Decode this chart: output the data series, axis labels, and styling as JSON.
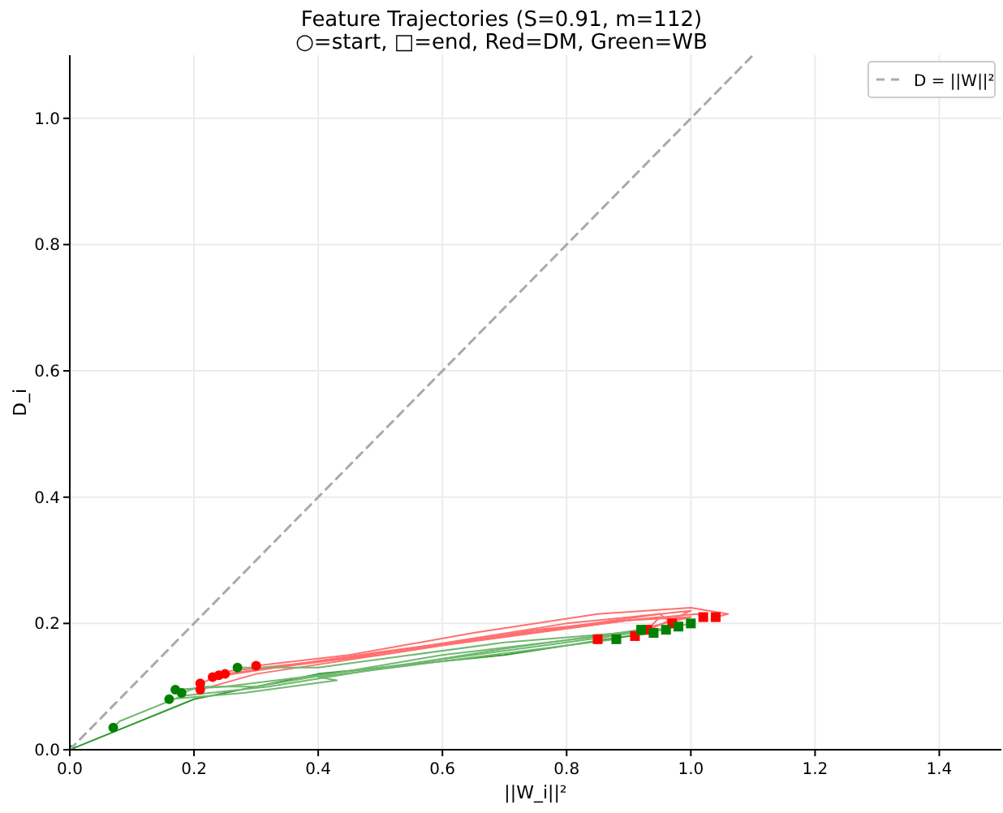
{
  "chart_data": {
    "type": "line",
    "title": "Feature Trajectories (S=0.91, m=112)",
    "subtitle": "○=start, □=end, Red=DM, Green=WB",
    "xlabel": "||W_i||²",
    "ylabel": "D_i",
    "xlim": [
      0,
      1.5
    ],
    "xticks": [
      {
        "value": 0,
        "label": "0.0"
      },
      0.2,
      0.4,
      0.6,
      0.8,
      {
        "value": 1,
        "label": "1.0"
      },
      1.2,
      1.4
    ],
    "ylim": [
      0,
      1.1
    ],
    "yticks": [
      {
        "value": 0,
        "label": "0.0"
      },
      0.2,
      0.4,
      0.6,
      0.8,
      {
        "value": 1,
        "label": "1.0"
      }
    ],
    "grid": true,
    "legend": "top right",
    "series": [
      {
        "color": "#ff7070",
        "x": [
          0.3,
          0.45,
          0.65,
          0.85,
          1.0,
          1.06,
          1.04
        ],
        "values": [
          0.133,
          0.15,
          0.185,
          0.215,
          0.225,
          0.215,
          0.21
        ]
      },
      {
        "color": "#ff7070",
        "x": [
          0.21,
          0.26,
          0.5,
          0.75,
          0.95,
          0.93
        ],
        "values": [
          0.105,
          0.125,
          0.15,
          0.19,
          0.21,
          0.19
        ]
      },
      {
        "color": "#ff7070",
        "x": [
          0.23,
          0.4,
          0.7,
          0.9,
          1.0,
          0.85
        ],
        "values": [
          0.115,
          0.14,
          0.18,
          0.205,
          0.21,
          0.175
        ]
      },
      {
        "color": "#ff7070",
        "x": [
          0.25,
          0.45,
          0.8,
          1.0,
          0.91
        ],
        "values": [
          0.12,
          0.145,
          0.2,
          0.22,
          0.18
        ]
      },
      {
        "color": "#ff7070",
        "x": [
          0.24,
          0.5,
          0.77,
          0.95,
          0.97
        ],
        "values": [
          0.118,
          0.155,
          0.19,
          0.215,
          0.2
        ]
      },
      {
        "color": "#ff7070",
        "x": [
          0.21,
          0.3,
          0.6,
          0.9,
          1.01,
          1.02
        ],
        "values": [
          0.095,
          0.12,
          0.165,
          0.205,
          0.215,
          0.21
        ]
      },
      {
        "color": "#2e9a2e",
        "x": [
          0,
          0.2,
          0.4,
          0.7,
          0.9,
          0.94
        ],
        "values": [
          0,
          0.08,
          0.12,
          0.15,
          0.18,
          0.185
        ]
      },
      {
        "color": "#70b870",
        "x": [
          0.16,
          0.28,
          0.43,
          0.4,
          0.6,
          0.88
        ],
        "values": [
          0.08,
          0.09,
          0.11,
          0.115,
          0.14,
          0.175
        ]
      },
      {
        "color": "#70b870",
        "x": [
          0.18,
          0.21,
          0.3,
          0.6,
          0.9,
          0.96
        ],
        "values": [
          0.09,
          0.1,
          0.1,
          0.15,
          0.185,
          0.19
        ]
      },
      {
        "color": "#70b870",
        "x": [
          0.27,
          0.4,
          0.7,
          0.95,
          1.0
        ],
        "values": [
          0.13,
          0.13,
          0.17,
          0.19,
          0.2
        ]
      },
      {
        "color": "#70b870",
        "x": [
          0.07,
          0.08,
          0.18,
          0.32,
          0.7,
          0.92
        ],
        "values": [
          0.035,
          0.045,
          0.085,
          0.1,
          0.16,
          0.19
        ]
      },
      {
        "color": "#70b870",
        "x": [
          0.17,
          0.25,
          0.5,
          0.8,
          0.98
        ],
        "values": [
          0.095,
          0.1,
          0.13,
          0.17,
          0.195
        ]
      },
      {
        "type": "scatter",
        "marker": "circle",
        "color": "#ff0000",
        "x": [
          0.3,
          0.21,
          0.23,
          0.25,
          0.24,
          0.21
        ],
        "values": [
          0.133,
          0.105,
          0.115,
          0.12,
          0.118,
          0.095
        ]
      },
      {
        "type": "scatter",
        "marker": "square",
        "color": "#ff0000",
        "x": [
          1.04,
          0.93,
          0.85,
          0.91,
          0.97,
          1.02
        ],
        "values": [
          0.21,
          0.19,
          0.175,
          0.18,
          0.2,
          0.21
        ]
      },
      {
        "type": "scatter",
        "marker": "circle",
        "color": "#008000",
        "x": [
          0,
          0.16,
          0.18,
          0.27,
          0.07,
          0.17
        ],
        "values": [
          0,
          0.08,
          0.09,
          0.13,
          0.035,
          0.095
        ]
      },
      {
        "type": "scatter",
        "marker": "square",
        "color": "#008000",
        "x": [
          0.94,
          0.88,
          0.96,
          1.0,
          0.92,
          0.98
        ],
        "values": [
          0.185,
          0.175,
          0.19,
          0.2,
          0.19,
          0.195
        ]
      },
      {
        "name": "D = ||W||²",
        "color": "#aaaaaa",
        "line_style": "dashed",
        "x": [
          0,
          1.1
        ],
        "values": [
          0,
          1.1
        ]
      }
    ]
  }
}
